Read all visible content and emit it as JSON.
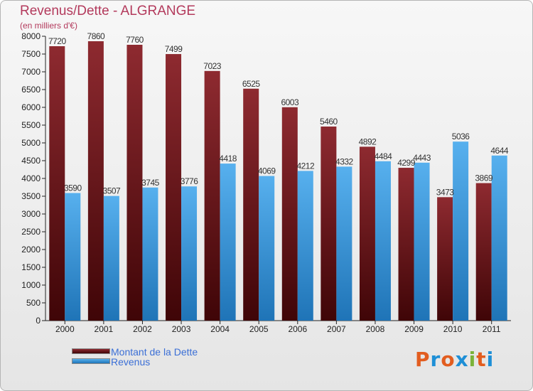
{
  "header": {
    "title": "Revenus/Dette - ALGRANGE",
    "subtitle": "(en milliers d'€)"
  },
  "colors": {
    "title": "#b33a5c",
    "dette": "#7a1c22",
    "revenus": "#47a3e3",
    "legend_text": "#3b6fd6"
  },
  "chart_data": {
    "type": "bar",
    "categories": [
      "2000",
      "2001",
      "2002",
      "2003",
      "2004",
      "2005",
      "2006",
      "2007",
      "2008",
      "2009",
      "2010",
      "2011"
    ],
    "series": [
      {
        "name": "Montant de la Dette",
        "values": [
          7720,
          7860,
          7760,
          7499,
          7023,
          6525,
          6003,
          5460,
          4892,
          4299,
          3473,
          3869
        ]
      },
      {
        "name": "Revenus",
        "values": [
          3590,
          3507,
          3745,
          3776,
          4418,
          4069,
          4212,
          4332,
          4484,
          4443,
          5036,
          4644
        ]
      }
    ],
    "yticks": [
      "0",
      "500",
      "1000",
      "1500",
      "2000",
      "2500",
      "3000",
      "3500",
      "4000",
      "4500",
      "5000",
      "5500",
      "6000",
      "6500",
      "7000",
      "7500",
      "8000"
    ],
    "ylim": [
      0,
      8000
    ],
    "grid": false,
    "legend_placement": "bottom-left"
  },
  "legend": {
    "dette_label": "Montant de la Dette",
    "revenus_label": "Revenus"
  },
  "logo": {
    "letters": [
      "P",
      "r",
      "o",
      "x",
      "i",
      "t",
      "i"
    ],
    "colors": [
      "#e25d1f",
      "#1e8fd6",
      "#e25d1f",
      "#1e8fd6",
      "#7bb33a",
      "#e25d1f",
      "#1e8fd6"
    ]
  }
}
